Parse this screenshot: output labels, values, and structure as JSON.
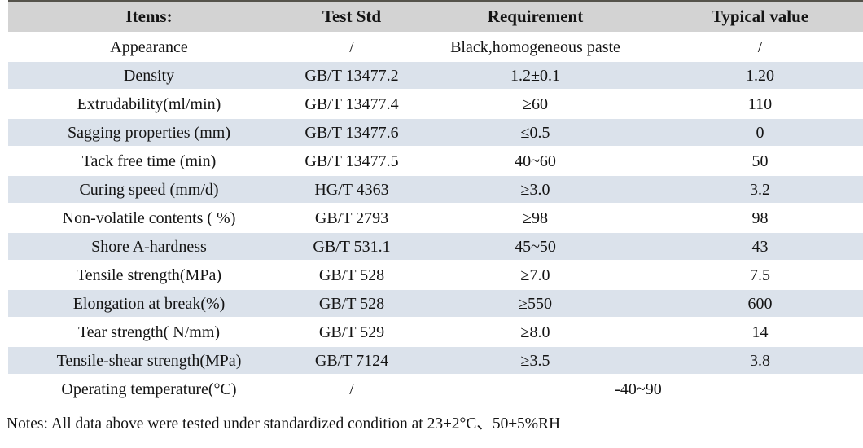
{
  "colors": {
    "header_bg": "#d3d3d3",
    "stripe_bg": "#dbe2eb",
    "top_border": "#55534b"
  },
  "table": {
    "headers": [
      "Items:",
      "Test Std",
      "Requirement",
      "Typical value"
    ],
    "rows": [
      {
        "item": "Appearance",
        "std": "/",
        "req": "Black,homogeneous paste",
        "typ": "/",
        "shaded": false
      },
      {
        "item": "Density",
        "std": "GB/T 13477.2",
        "req": "1.2±0.1",
        "typ": "1.20",
        "shaded": true
      },
      {
        "item": "Extrudability(ml/min)",
        "std": "GB/T 13477.4",
        "req": "≥60",
        "typ": "110",
        "shaded": false
      },
      {
        "item": "Sagging properties (mm)",
        "std": "GB/T 13477.6",
        "req": "≤0.5",
        "typ": "0",
        "shaded": true
      },
      {
        "item": "Tack free time (min)",
        "std": "GB/T 13477.5",
        "req": "40~60",
        "typ": "50",
        "shaded": false
      },
      {
        "item": "Curing speed (mm/d)",
        "std": "HG/T 4363",
        "req": "≥3.0",
        "typ": "3.2",
        "shaded": true
      },
      {
        "item": "Non-volatile contents ( %)",
        "std": "GB/T 2793",
        "req": "≥98",
        "typ": "98",
        "shaded": false
      },
      {
        "item": "Shore A-hardness",
        "std": "GB/T 531.1",
        "req": "45~50",
        "typ": "43",
        "shaded": true
      },
      {
        "item": "Tensile strength(MPa)",
        "std": "GB/T 528",
        "req": "≥7.0",
        "typ": "7.5",
        "shaded": false
      },
      {
        "item": "Elongation at break(%)",
        "std": "GB/T 528",
        "req": "≥550",
        "typ": "600",
        "shaded": true
      },
      {
        "item": "Tear strength( N/mm)",
        "std": "GB/T 529",
        "req": "≥8.0",
        "typ": "14",
        "shaded": false
      },
      {
        "item": "Tensile-shear strength(MPa)",
        "std": "GB/T 7124",
        "req": "≥3.5",
        "typ": "3.8",
        "shaded": true
      },
      {
        "item": "Operating temperature(°C)",
        "std": "/",
        "req": "-40~90",
        "typ": null,
        "shaded": false,
        "merged": true
      }
    ],
    "notes": "Notes: All data above were tested under standardized condition at 23±2°C、50±5%RH"
  }
}
